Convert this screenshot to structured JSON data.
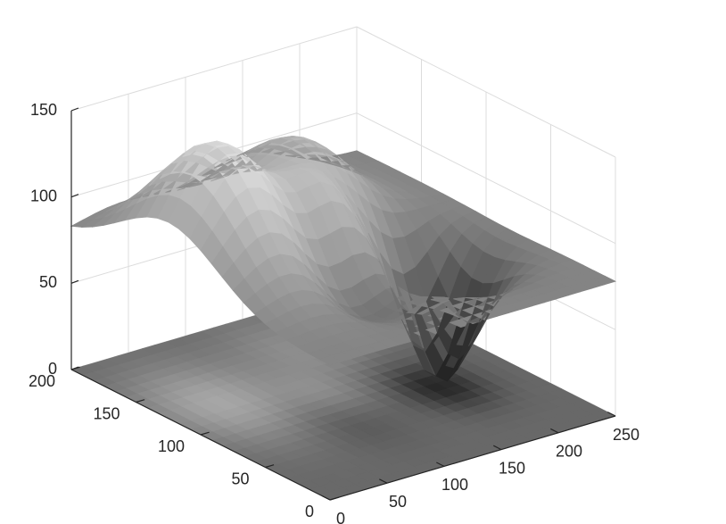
{
  "chart_data": {
    "type": "3d-surface",
    "title": "",
    "xlabel": "",
    "ylabel": "",
    "zlabel": "",
    "colormap": "gray",
    "grid": true,
    "box": "back-planes",
    "xlim": [
      0,
      250
    ],
    "ylim": [
      0,
      200
    ],
    "zlim": [
      0,
      150
    ],
    "xticks": [
      "0",
      "50",
      "100",
      "150",
      "200",
      "250"
    ],
    "yticks": [
      "0",
      "50",
      "100",
      "150",
      "200"
    ],
    "zticks": [
      "0",
      "50",
      "100",
      "150"
    ],
    "base_level": 78,
    "features": [
      {
        "kind": "peak",
        "x": 45,
        "y": 125,
        "height": 150,
        "width": 38
      },
      {
        "kind": "peak",
        "x": 150,
        "y": 155,
        "height": 120,
        "width": 34
      },
      {
        "kind": "peak",
        "x": 115,
        "y": 105,
        "height": 105,
        "width": 20
      },
      {
        "kind": "pit",
        "x": 185,
        "y": 80,
        "height": 0,
        "width": 22
      },
      {
        "kind": "pit",
        "x": 95,
        "y": 70,
        "height": 55,
        "width": 25
      }
    ],
    "projection": "flat contour image on z = 0 plane"
  }
}
